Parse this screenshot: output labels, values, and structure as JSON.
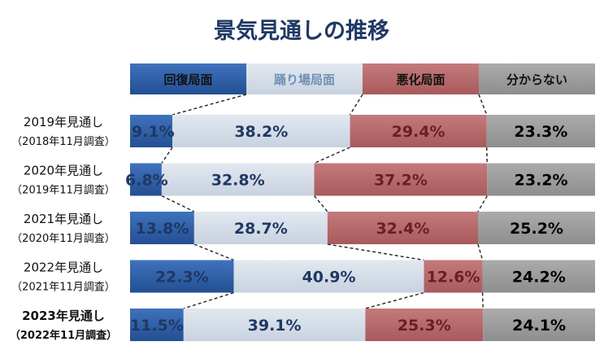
{
  "chart_data": {
    "type": "bar",
    "stacked": true,
    "orientation": "horizontal",
    "normalized": "100%",
    "title": "景気見通しの推移",
    "legend_position": "top",
    "categories": [
      {
        "label": "2019年見通し",
        "sub": "（2018年11月調査）",
        "bold": false
      },
      {
        "label": "2020年見通し",
        "sub": "（2019年11月調査）",
        "bold": false
      },
      {
        "label": "2021年見通し",
        "sub": "（2020年11月調査）",
        "bold": false
      },
      {
        "label": "2022年見通し",
        "sub": "（2021年11月調査）",
        "bold": false
      },
      {
        "label": "2023年見通し",
        "sub": "（2022年11月調査）",
        "bold": true
      }
    ],
    "series": [
      {
        "name": "回復局面",
        "values": [
          9.1,
          6.8,
          13.8,
          22.3,
          11.5
        ]
      },
      {
        "name": "踊り場局面",
        "values": [
          38.2,
          32.8,
          28.7,
          40.9,
          39.1
        ]
      },
      {
        "name": "悪化局面",
        "values": [
          29.4,
          37.2,
          32.4,
          12.6,
          25.3
        ]
      },
      {
        "name": "分からない",
        "values": [
          23.3,
          23.2,
          25.2,
          24.2,
          24.1
        ]
      }
    ],
    "value_labels": [
      [
        "9.1%",
        "38.2%",
        "29.4%",
        "23.3%"
      ],
      [
        "6.8%",
        "32.8%",
        "37.2%",
        "23.2%"
      ],
      [
        "13.8%",
        "28.7%",
        "32.4%",
        "25.2%"
      ],
      [
        "22.3%",
        "40.9%",
        "12.6%",
        "24.2%"
      ],
      [
        "11.5%",
        "39.1%",
        "25.3%",
        "24.1%"
      ]
    ],
    "connector_lines": "dashed",
    "colors": {
      "recovery": "#2f5fa8",
      "plateau": "#d5dde8",
      "worsening": "#b96a6c",
      "unknown": "#9d9d9d",
      "recovery_text": "#1f3864",
      "plateau_text": "#1f3864",
      "worsening_text": "#6b1e20",
      "unknown_text": "#000000",
      "plateau_header_text": "#6f8fb5"
    }
  }
}
